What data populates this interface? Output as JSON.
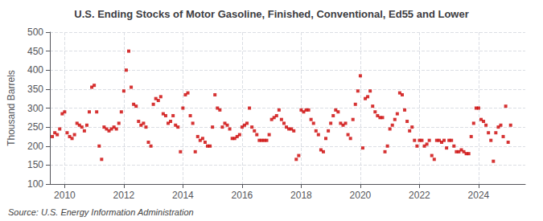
{
  "chart_data": {
    "type": "scatter",
    "title": "U.S. Ending Stocks of Motor Gasoline, Finished, Conventional, Ed55 and Lower",
    "ylabel": "Thousand Barrels",
    "source": "Source: U.S. Energy Information Administration",
    "color": "#cc0000",
    "marker": "square",
    "grid": true,
    "xlim": [
      2009.5,
      2025.58
    ],
    "xticks": [
      2010,
      2012,
      2014,
      2016,
      2018,
      2020,
      2022,
      2024
    ],
    "ylim": [
      100,
      500
    ],
    "yticks": [
      100,
      150,
      200,
      250,
      300,
      350,
      400,
      450,
      500
    ],
    "x": [
      2009.583,
      2009.667,
      2009.75,
      2009.833,
      2009.917,
      2010.0,
      2010.083,
      2010.167,
      2010.25,
      2010.333,
      2010.417,
      2010.5,
      2010.583,
      2010.667,
      2010.75,
      2010.833,
      2010.917,
      2011.0,
      2011.083,
      2011.167,
      2011.25,
      2011.333,
      2011.417,
      2011.5,
      2011.583,
      2011.667,
      2011.75,
      2011.833,
      2011.917,
      2012.0,
      2012.083,
      2012.167,
      2012.25,
      2012.333,
      2012.417,
      2012.5,
      2012.583,
      2012.667,
      2012.75,
      2012.833,
      2012.917,
      2013.0,
      2013.083,
      2013.167,
      2013.25,
      2013.333,
      2013.417,
      2013.5,
      2013.583,
      2013.667,
      2013.75,
      2013.833,
      2013.917,
      2014.0,
      2014.083,
      2014.167,
      2014.25,
      2014.333,
      2014.417,
      2014.5,
      2014.583,
      2014.667,
      2014.75,
      2014.833,
      2014.917,
      2015.0,
      2015.083,
      2015.167,
      2015.25,
      2015.333,
      2015.417,
      2015.5,
      2015.583,
      2015.667,
      2015.75,
      2015.833,
      2015.917,
      2016.0,
      2016.083,
      2016.167,
      2016.25,
      2016.333,
      2016.417,
      2016.5,
      2016.583,
      2016.667,
      2016.75,
      2016.833,
      2016.917,
      2017.0,
      2017.083,
      2017.167,
      2017.25,
      2017.333,
      2017.417,
      2017.5,
      2017.583,
      2017.667,
      2017.75,
      2017.833,
      2017.917,
      2018.0,
      2018.083,
      2018.167,
      2018.25,
      2018.333,
      2018.417,
      2018.5,
      2018.583,
      2018.667,
      2018.75,
      2018.833,
      2018.917,
      2019.0,
      2019.083,
      2019.167,
      2019.25,
      2019.333,
      2019.417,
      2019.5,
      2019.583,
      2019.667,
      2019.75,
      2019.833,
      2019.917,
      2020.0,
      2020.083,
      2020.167,
      2020.25,
      2020.333,
      2020.417,
      2020.5,
      2020.583,
      2020.667,
      2020.75,
      2020.833,
      2020.917,
      2021.0,
      2021.083,
      2021.167,
      2021.25,
      2021.333,
      2021.417,
      2021.5,
      2021.583,
      2021.667,
      2021.75,
      2021.833,
      2021.917,
      2022.0,
      2022.083,
      2022.167,
      2022.25,
      2022.333,
      2022.417,
      2022.5,
      2022.583,
      2022.667,
      2022.75,
      2022.833,
      2022.917,
      2023.0,
      2023.083,
      2023.167,
      2023.25,
      2023.333,
      2023.417,
      2023.5,
      2023.583,
      2023.667,
      2023.75,
      2023.833,
      2023.917,
      2024.0,
      2024.083,
      2024.167,
      2024.25,
      2024.333,
      2024.417,
      2024.5,
      2024.583,
      2024.667,
      2024.75,
      2024.833,
      2024.917,
      2025.0,
      2025.083
    ],
    "values": [
      225,
      235,
      230,
      245,
      285,
      290,
      235,
      225,
      220,
      230,
      260,
      255,
      250,
      240,
      255,
      290,
      355,
      360,
      290,
      200,
      165,
      250,
      245,
      240,
      245,
      250,
      245,
      260,
      290,
      345,
      400,
      450,
      355,
      310,
      305,
      265,
      255,
      260,
      250,
      210,
      200,
      310,
      325,
      320,
      330,
      285,
      280,
      260,
      265,
      280,
      255,
      250,
      185,
      300,
      335,
      340,
      280,
      260,
      185,
      225,
      215,
      220,
      210,
      200,
      200,
      250,
      335,
      300,
      295,
      250,
      260,
      255,
      245,
      220,
      220,
      225,
      230,
      250,
      255,
      260,
      300,
      250,
      240,
      230,
      215,
      215,
      215,
      215,
      230,
      270,
      275,
      280,
      295,
      270,
      260,
      250,
      245,
      245,
      240,
      165,
      175,
      295,
      290,
      295,
      295,
      270,
      260,
      240,
      230,
      190,
      185,
      220,
      240,
      260,
      280,
      295,
      290,
      260,
      255,
      260,
      230,
      220,
      270,
      310,
      345,
      385,
      195,
      325,
      330,
      345,
      305,
      290,
      280,
      275,
      275,
      185,
      200,
      245,
      255,
      270,
      285,
      340,
      335,
      295,
      265,
      240,
      250,
      215,
      200,
      215,
      215,
      200,
      205,
      215,
      175,
      165,
      215,
      215,
      210,
      215,
      195,
      215,
      215,
      200,
      185,
      185,
      190,
      185,
      180,
      180,
      225,
      260,
      300,
      300,
      270,
      265,
      255,
      235,
      215,
      160,
      235,
      250,
      255,
      225,
      305,
      210,
      255
    ]
  }
}
